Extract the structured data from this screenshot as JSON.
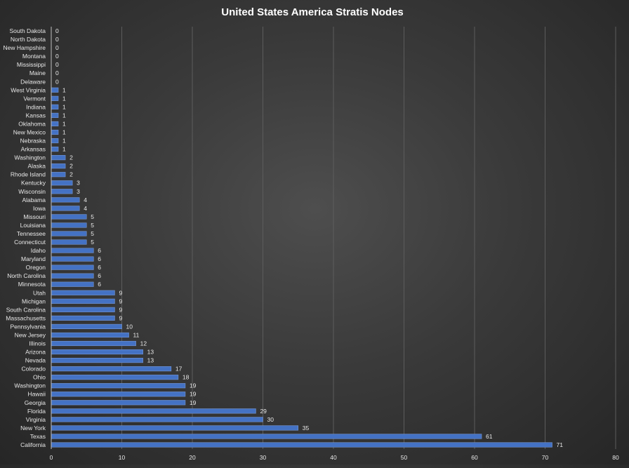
{
  "chart_data": {
    "type": "bar",
    "orientation": "horizontal",
    "title": "United States America Stratis Nodes",
    "xlabel": "",
    "ylabel": "",
    "xlim": [
      0,
      80
    ],
    "x_ticks": [
      0,
      10,
      20,
      30,
      40,
      50,
      60,
      70,
      80
    ],
    "grid": "vertical",
    "bar_color": "#4472c4",
    "data_labels": true,
    "categories": [
      "South Dakota",
      "North Dakota",
      "New Hampshire",
      "Montana",
      "Mississippi",
      "Maine",
      "Delaware",
      "West Virginia",
      "Vermont",
      "Indiana",
      "Kansas",
      "Oklahoma",
      "New Mexico",
      "Nebraska",
      "Arkansas",
      "Washington",
      "Alaska",
      "Rhode Island",
      "Kentucky",
      "Wisconsin",
      "Alabama",
      "Iowa",
      "Missouri",
      "Louisiana",
      "Tennessee",
      "Connecticut",
      "Idaho",
      "Maryland",
      "Oregon",
      "North Carolina",
      "Minnesota",
      "Utah",
      "Michigan",
      "South Carolina",
      "Massachusetts",
      "Pennsylvania",
      "New Jersey",
      "Illinois",
      "Arizona",
      "Nevada",
      "Colorado",
      "Ohio",
      "Washington",
      "Hawaii",
      "Georgia",
      "Florida",
      "Virginia",
      "New York",
      "Texas",
      "California"
    ],
    "values": [
      0,
      0,
      0,
      0,
      0,
      0,
      0,
      1,
      1,
      1,
      1,
      1,
      1,
      1,
      1,
      2,
      2,
      2,
      3,
      3,
      4,
      4,
      5,
      5,
      5,
      5,
      6,
      6,
      6,
      6,
      6,
      9,
      9,
      9,
      9,
      10,
      11,
      12,
      13,
      13,
      17,
      18,
      19,
      19,
      19,
      29,
      30,
      35,
      61,
      71
    ]
  }
}
